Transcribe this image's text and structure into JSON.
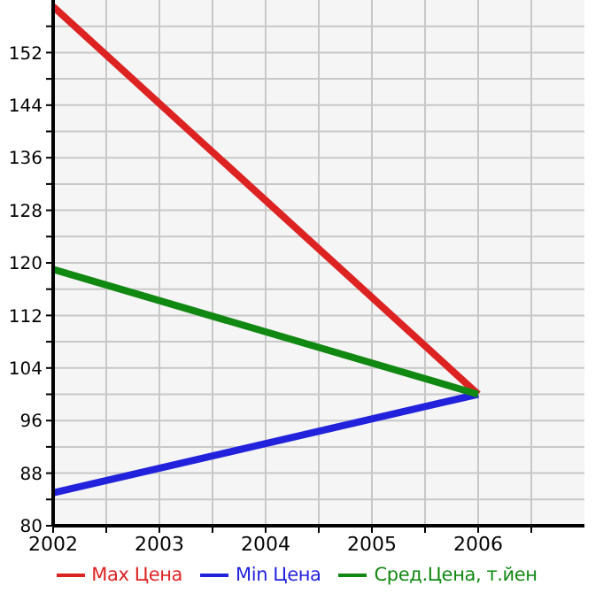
{
  "chart_data": {
    "type": "line",
    "x": [
      2002,
      2006
    ],
    "series": [
      {
        "name": "Max Цена",
        "color": "#dd2222",
        "values": [
          159,
          100
        ]
      },
      {
        "name": "Min Цена",
        "color": "#2222dd",
        "values": [
          85,
          100
        ]
      },
      {
        "name": "Сред.Цена, т.йен",
        "color": "#118811",
        "values": [
          119,
          100
        ]
      }
    ],
    "xlim": [
      2002,
      2007
    ],
    "xticks": [
      2002,
      {
        "value": 2002.5,
        "label": null
      },
      2003,
      {
        "value": 2003.5,
        "label": null
      },
      2004,
      {
        "value": 2004.5,
        "label": null
      },
      2005,
      {
        "value": 2005.5,
        "label": null
      },
      2006,
      {
        "value": 2006.5,
        "label": null
      }
    ],
    "ylim": [
      80,
      160
    ],
    "yticks": [
      80,
      {
        "value": 84,
        "label": null
      },
      88,
      {
        "value": 92,
        "label": null
      },
      96,
      {
        "value": 100,
        "label": null
      },
      104,
      {
        "value": 108,
        "label": null
      },
      112,
      {
        "value": 116,
        "label": null
      },
      120,
      {
        "value": 124,
        "label": null
      },
      128,
      {
        "value": 132,
        "label": null
      },
      136,
      {
        "value": 140,
        "label": null
      },
      144,
      {
        "value": 148,
        "label": null
      },
      152,
      {
        "value": 156,
        "label": null
      }
    ],
    "grid": true,
    "legend": "bottom",
    "marker": "none",
    "line_style": "solid"
  }
}
